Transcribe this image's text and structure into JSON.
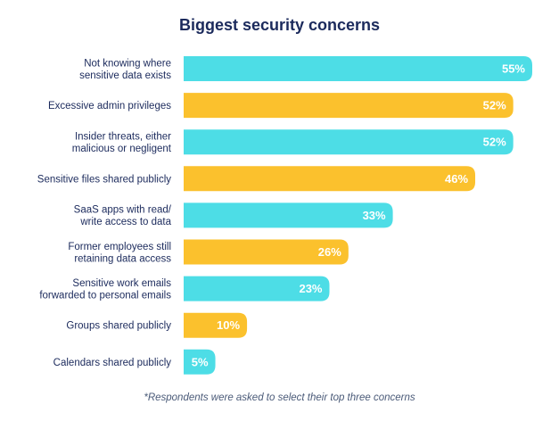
{
  "chart_data": {
    "type": "bar",
    "orientation": "horizontal",
    "title": "Biggest security concerns",
    "footnote": "*Respondents were asked to select their top three concerns",
    "categories": [
      [
        "Not knowing where",
        "sensitive data exists"
      ],
      [
        "Excessive admin privileges"
      ],
      [
        "Insider threats, either",
        "malicious or negligent"
      ],
      [
        "Sensitive files shared publicly"
      ],
      [
        "SaaS apps with read/",
        "write access to data"
      ],
      [
        "Former employees still",
        "retaining data access"
      ],
      [
        "Sensitive work emails",
        "forwarded to personal emails"
      ],
      [
        "Groups shared publicly"
      ],
      [
        "Calendars shared publicly"
      ]
    ],
    "values": [
      55,
      52,
      52,
      46,
      33,
      26,
      23,
      10,
      5
    ],
    "value_labels": [
      "55%",
      "52%",
      "52%",
      "46%",
      "33%",
      "26%",
      "23%",
      "10%",
      "5%"
    ],
    "unit": "%",
    "xlim": [
      0,
      55
    ],
    "grid": false,
    "colors": [
      "#4ddde6",
      "#fbc12d"
    ]
  }
}
